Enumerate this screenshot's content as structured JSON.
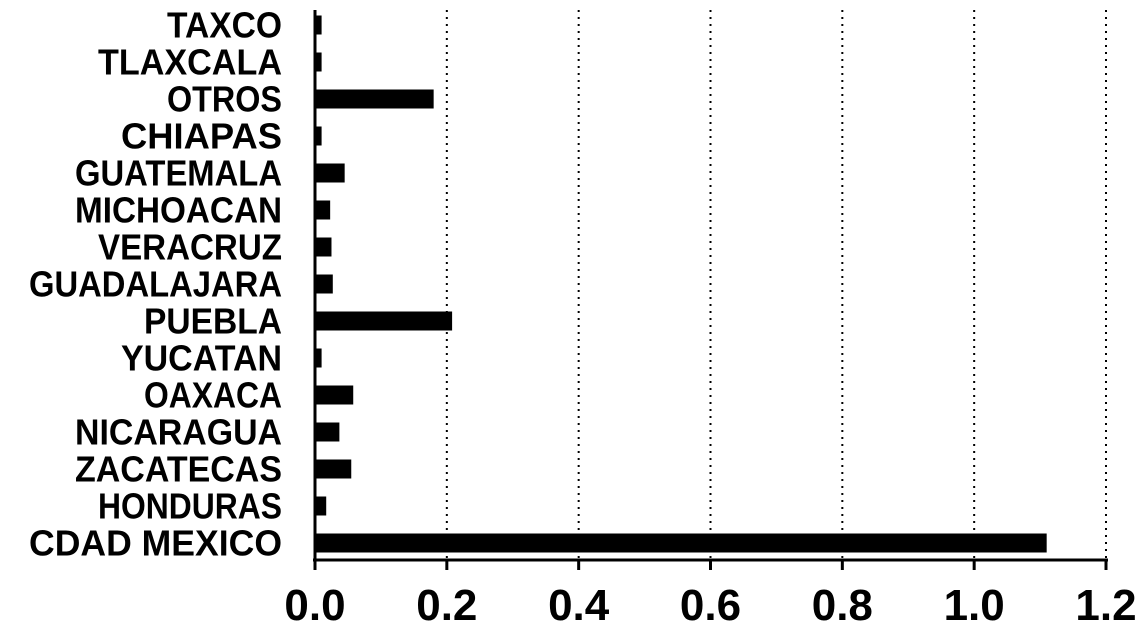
{
  "chart_data": {
    "type": "bar",
    "orientation": "horizontal",
    "title": "",
    "xlabel": "",
    "ylabel": "",
    "categories": [
      "TAXCO",
      "TLAXCALA",
      "OTROS",
      "CHIAPAS",
      "GUATEMALA",
      "MICHOACAN",
      "VERACRUZ",
      "GUADALAJARA",
      "PUEBLA",
      "YUCATAN",
      "OAXACA",
      "NICARAGUA",
      "ZACATECAS",
      "HONDURAS",
      "CDAD MEXICO"
    ],
    "values": [
      0.01,
      0.01,
      0.18,
      0.01,
      0.045,
      0.023,
      0.025,
      0.027,
      0.208,
      0.01,
      0.058,
      0.037,
      0.055,
      0.017,
      1.11
    ],
    "xlim": [
      0,
      1.2
    ],
    "xticks": [
      0.0,
      0.2,
      0.4,
      0.6,
      0.8,
      1.0,
      1.2
    ],
    "xtick_labels": [
      "0.0",
      "0.2",
      "0.4",
      "0.6",
      "0.8",
      "1.0",
      "1.2"
    ],
    "grid": "vertical-dotted",
    "legend": "none",
    "colors": {
      "bar": "#000000",
      "background": "#ffffff"
    }
  }
}
